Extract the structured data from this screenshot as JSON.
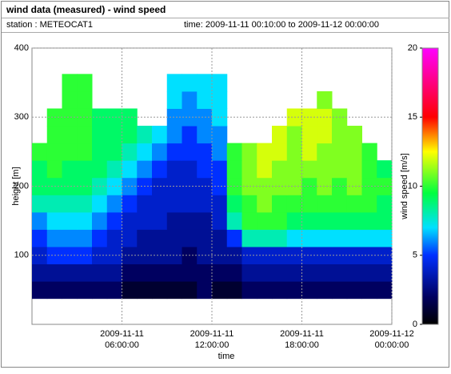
{
  "header": {
    "title": "wind data (measured) - wind speed",
    "station": "station : METEOCAT1",
    "time": "time: 2009-11-11 00:10:00 to 2009-11-12 00:00:00"
  },
  "chart_data": {
    "type": "heatmap",
    "x_label": "time",
    "y_label": "height [m]",
    "colorbar_label": "wind speed [m/s]",
    "x": [
      "2009-11-11 00:30:00",
      "2009-11-11 01:30:00",
      "2009-11-11 02:30:00",
      "2009-11-11 03:30:00",
      "2009-11-11 04:30:00",
      "2009-11-11 05:30:00",
      "2009-11-11 06:30:00",
      "2009-11-11 07:30:00",
      "2009-11-11 08:30:00",
      "2009-11-11 09:30:00",
      "2009-11-11 10:30:00",
      "2009-11-11 11:30:00",
      "2009-11-11 12:30:00",
      "2009-11-11 13:30:00",
      "2009-11-11 14:30:00",
      "2009-11-11 15:30:00",
      "2009-11-11 16:30:00",
      "2009-11-11 17:30:00",
      "2009-11-11 18:30:00",
      "2009-11-11 19:30:00",
      "2009-11-11 20:30:00",
      "2009-11-11 21:30:00",
      "2009-11-11 22:30:00",
      "2009-11-11 23:30:00"
    ],
    "y": [
      50,
      75,
      100,
      125,
      150,
      175,
      200,
      225,
      250,
      275,
      300,
      325,
      350
    ],
    "z": [
      [
        2,
        2,
        2,
        2,
        2,
        2,
        1,
        1,
        1,
        1,
        1,
        2,
        1,
        1,
        2,
        2,
        2,
        2,
        2,
        2,
        2,
        2,
        2,
        2
      ],
      [
        3,
        3,
        3,
        3,
        3,
        3,
        2,
        2,
        2,
        2,
        2,
        2,
        2,
        2,
        3,
        3,
        3,
        3,
        3,
        3,
        3,
        3,
        3,
        3
      ],
      [
        4,
        5,
        5,
        5,
        4,
        4,
        3,
        3,
        3,
        3,
        2,
        3,
        3,
        3,
        4,
        4,
        4,
        4,
        4,
        4,
        4,
        4,
        4,
        4
      ],
      [
        5,
        6,
        6,
        6,
        5,
        4,
        4,
        3,
        3,
        3,
        3,
        3,
        3,
        5,
        8,
        8,
        8,
        7,
        7,
        7,
        7,
        7,
        7,
        7
      ],
      [
        6,
        7,
        7,
        7,
        6,
        5,
        4,
        4,
        4,
        3,
        3,
        3,
        4,
        8,
        10,
        10,
        10,
        9,
        9,
        9,
        9,
        9,
        9,
        9
      ],
      [
        8,
        8,
        8,
        8,
        7,
        6,
        5,
        4,
        4,
        4,
        4,
        4,
        4,
        9,
        10,
        11,
        10,
        10,
        10,
        10,
        10,
        10,
        10,
        9
      ],
      [
        9,
        9,
        9,
        9,
        8,
        7,
        6,
        5,
        4,
        4,
        4,
        4,
        5,
        10,
        11,
        11,
        11,
        11,
        10,
        11,
        10,
        11,
        10,
        10
      ],
      [
        9,
        10,
        9,
        9,
        9,
        8,
        7,
        6,
        5,
        4,
        4,
        5,
        5,
        10,
        11,
        12,
        11,
        11,
        11,
        11,
        11,
        11,
        10,
        9
      ],
      [
        10,
        10,
        10,
        10,
        9,
        9,
        8,
        7,
        6,
        5,
        5,
        5,
        6,
        10,
        11,
        12,
        12,
        11,
        12,
        11,
        11,
        11,
        10,
        null
      ],
      [
        null,
        10,
        10,
        10,
        9,
        9,
        9,
        8,
        7,
        6,
        5,
        6,
        6,
        null,
        null,
        null,
        12,
        11,
        12,
        12,
        11,
        11,
        null,
        null
      ],
      [
        null,
        10,
        10,
        10,
        9,
        9,
        9,
        null,
        null,
        6,
        6,
        6,
        7,
        null,
        null,
        null,
        null,
        12,
        12,
        12,
        11,
        null,
        null,
        null
      ],
      [
        null,
        null,
        10,
        10,
        null,
        null,
        null,
        null,
        null,
        7,
        6,
        7,
        7,
        null,
        null,
        null,
        null,
        null,
        null,
        11,
        null,
        null,
        null,
        null
      ],
      [
        null,
        null,
        10,
        10,
        null,
        null,
        null,
        null,
        null,
        7,
        7,
        7,
        7,
        null,
        null,
        null,
        null,
        null,
        null,
        null,
        null,
        null,
        null,
        null
      ]
    ],
    "xlim": [
      "2009-11-11 00:00:00",
      "2009-11-12 00:00:00"
    ],
    "xticks": [
      {
        "value": "2009-11-11 06:00:00",
        "label": [
          "2009-11-11",
          "06:00:00"
        ]
      },
      {
        "value": "2009-11-11 12:00:00",
        "label": [
          "2009-11-11",
          "12:00:00"
        ]
      },
      {
        "value": "2009-11-11 18:00:00",
        "label": [
          "2009-11-11",
          "18:00:00"
        ]
      },
      {
        "value": "2009-11-12 00:00:00",
        "label": [
          "2009-11-12",
          "00:00:00"
        ]
      }
    ],
    "ylim": [
      0,
      400
    ],
    "yticks": [
      100,
      200,
      300,
      400
    ],
    "zlim": [
      0,
      20
    ],
    "zticks": [
      0,
      5,
      10,
      15,
      20
    ],
    "colorscale": [
      [
        0,
        "#000000"
      ],
      [
        2,
        "#000060"
      ],
      [
        5,
        "#0030ff"
      ],
      [
        7,
        "#00e0ff"
      ],
      [
        9.5,
        "#00ff40"
      ],
      [
        12.5,
        "#ffff00"
      ],
      [
        15,
        "#ff0000"
      ],
      [
        20,
        "#ff00ff"
      ]
    ],
    "grid": true
  }
}
